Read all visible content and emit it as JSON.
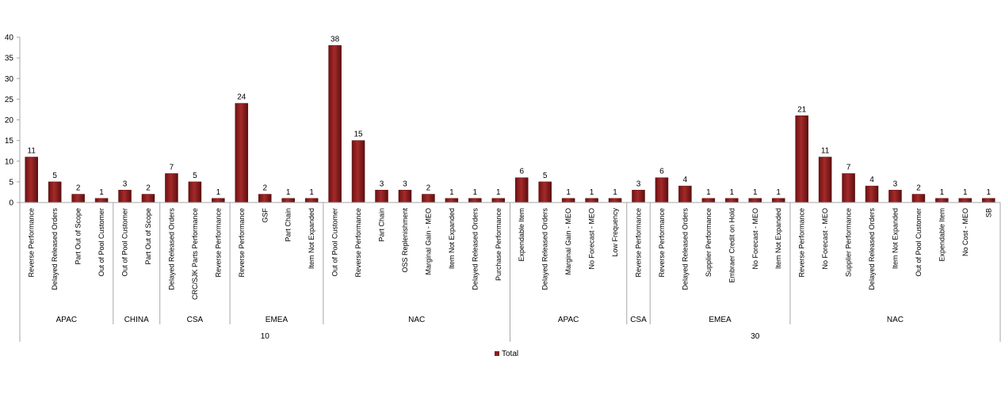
{
  "chart_data": {
    "type": "bar",
    "title": "",
    "xlabel": "",
    "ylabel": "",
    "ylim": [
      0,
      40
    ],
    "yticks": [
      0,
      5,
      10,
      15,
      20,
      25,
      30,
      35,
      40
    ],
    "grid": false,
    "legend_position": "bottom",
    "series": [
      {
        "name": "Total",
        "color": "#8e1c1c",
        "values": [
          11,
          5,
          2,
          1,
          3,
          2,
          7,
          5,
          1,
          24,
          2,
          1,
          1,
          38,
          15,
          3,
          3,
          2,
          1,
          1,
          1,
          6,
          5,
          1,
          1,
          1,
          3,
          6,
          4,
          1,
          1,
          1,
          1,
          21,
          11,
          7,
          4,
          3,
          2,
          1,
          1,
          1
        ]
      }
    ],
    "categories": [
      "Reverse Performance",
      "Delayed Released Orders",
      "Part Out of Scope",
      "Out of Pool Customer",
      "Out of Pool Customer",
      "Part Out of Scope",
      "Delayed Released Orders",
      "CRC/SJK Parts Performance",
      "Reverse Performance",
      "Reverse Performance",
      "GSF",
      "Part Chain",
      "Item Not Expanded",
      "Out of Pool Customer",
      "Reverse Performance",
      "Part Chain",
      "OSS Replenishment",
      "Marginal Gain - MEO",
      "Item Not Expanded",
      "Delayed Released Orders",
      "Purchase Performance",
      "Expendable Item",
      "Delayed Released Orders",
      "Marginal Gain - MEO",
      "No Forecast - MEO",
      "Low Frequency",
      "Reverse Performance",
      "Reverse Performance",
      "Delayed Released Orders",
      "Supplier Performance",
      "Embraer Credit on Hold",
      "No Forecast - MEO",
      "Item Not Expanded",
      "Reverse Performance",
      "No Forecast - MEO",
      "Supplier Performance",
      "Delayed Released Orders",
      "Item Not Expanded",
      "Out of Pool Customer",
      "Expendable Item",
      "No Cost - MEO",
      "SB"
    ],
    "regions": [
      {
        "label": "APAC",
        "count": 4
      },
      {
        "label": "CHINA",
        "count": 2
      },
      {
        "label": "CSA",
        "count": 3
      },
      {
        "label": "EMEA",
        "count": 4
      },
      {
        "label": "NAC",
        "count": 8
      },
      {
        "label": "APAC",
        "count": 5
      },
      {
        "label": "CSA",
        "count": 1
      },
      {
        "label": "EMEA",
        "count": 6
      },
      {
        "label": "NAC",
        "count": 9
      }
    ],
    "groups": [
      {
        "label": "10",
        "count": 21
      },
      {
        "label": "30",
        "count": 21
      }
    ],
    "legend": [
      {
        "label": "Total",
        "color": "#8e1c1c"
      }
    ]
  }
}
